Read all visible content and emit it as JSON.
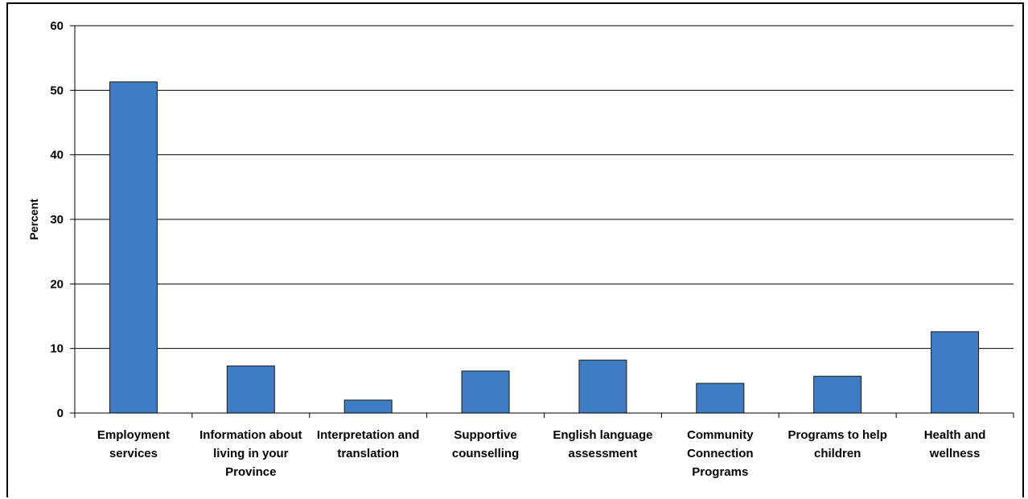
{
  "chart_data": {
    "type": "bar",
    "title": "",
    "xlabel": "",
    "ylabel": "Percent",
    "ylim": [
      0,
      60
    ],
    "yticks": [
      0,
      10,
      20,
      30,
      40,
      50,
      60
    ],
    "grid": true,
    "legend": "none",
    "bar_color": "#3f7cc3",
    "categories": [
      [
        "Employment",
        "services"
      ],
      [
        "Information about",
        "living in your",
        "Province"
      ],
      [
        "Interpretation and",
        "translation"
      ],
      [
        "Supportive",
        "counselling"
      ],
      [
        "English language",
        "assessment"
      ],
      [
        "Community",
        "Connection",
        "Programs"
      ],
      [
        "Programs to help",
        "children"
      ],
      [
        "Health and",
        "wellness"
      ]
    ],
    "values": [
      51.3,
      7.3,
      2.0,
      6.5,
      8.2,
      4.6,
      5.7,
      12.6
    ]
  }
}
